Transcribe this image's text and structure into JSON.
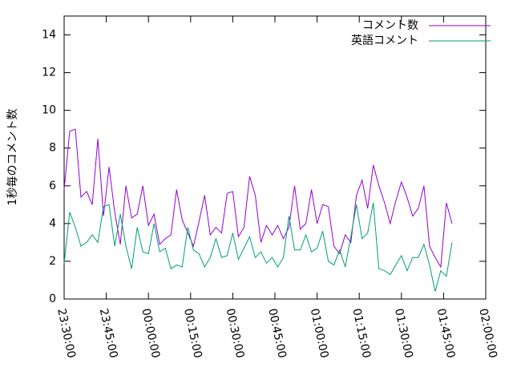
{
  "chart_data": {
    "type": "line",
    "ylabel": "1秒毎のコメント数",
    "x": [
      "23:30:00",
      "23:32:00",
      "23:34:00",
      "23:36:00",
      "23:38:00",
      "23:40:00",
      "23:42:00",
      "23:44:00",
      "23:46:00",
      "23:48:00",
      "23:50:00",
      "23:52:00",
      "23:54:00",
      "23:56:00",
      "23:58:00",
      "00:00:00",
      "00:02:00",
      "00:04:00",
      "00:06:00",
      "00:08:00",
      "00:10:00",
      "00:12:00",
      "00:14:00",
      "00:16:00",
      "00:18:00",
      "00:20:00",
      "00:22:00",
      "00:24:00",
      "00:26:00",
      "00:28:00",
      "00:30:00",
      "00:32:00",
      "00:34:00",
      "00:36:00",
      "00:38:00",
      "00:40:00",
      "00:42:00",
      "00:44:00",
      "00:46:00",
      "00:48:00",
      "00:50:00",
      "00:52:00",
      "00:54:00",
      "00:56:00",
      "00:58:00",
      "01:00:00",
      "01:02:00",
      "01:04:00",
      "01:06:00",
      "01:08:00",
      "01:10:00",
      "01:12:00",
      "01:14:00",
      "01:16:00",
      "01:18:00",
      "01:20:00",
      "01:22:00",
      "01:24:00",
      "01:26:00",
      "01:28:00",
      "01:30:00",
      "01:32:00",
      "01:34:00",
      "01:36:00",
      "01:38:00",
      "01:40:00",
      "01:42:00",
      "01:44:00",
      "01:46:00",
      "01:48:00"
    ],
    "series": [
      {
        "name": "コメント数",
        "color": "#9400d3",
        "values": [
          5.8,
          8.9,
          9.0,
          5.4,
          5.7,
          5.0,
          8.5,
          4.4,
          7.0,
          4.6,
          2.9,
          6.0,
          4.3,
          4.5,
          6.0,
          3.9,
          4.5,
          2.9,
          3.2,
          3.4,
          5.8,
          4.2,
          3.5,
          2.8,
          4.1,
          5.5,
          3.4,
          3.8,
          3.5,
          5.6,
          5.7,
          3.3,
          3.8,
          6.5,
          5.5,
          3.0,
          3.9,
          3.4,
          3.9,
          3.2,
          3.8,
          6.0,
          3.7,
          4.0,
          5.8,
          4.0,
          5.0,
          4.9,
          2.8,
          2.4,
          3.4,
          3.0,
          5.5,
          6.3,
          4.8,
          7.1,
          6.0,
          5.1,
          4.0,
          5.2,
          6.2,
          5.4,
          4.4,
          4.8,
          6.0,
          2.8,
          2.2,
          1.7,
          5.1,
          4.0
        ]
      },
      {
        "name": "英語コメント",
        "color": "#009e73",
        "values": [
          1.9,
          4.6,
          3.8,
          2.8,
          3.0,
          3.4,
          3.0,
          4.9,
          5.0,
          2.8,
          4.5,
          2.8,
          1.6,
          3.8,
          2.5,
          2.4,
          4.0,
          2.5,
          2.7,
          1.6,
          1.8,
          1.7,
          3.8,
          2.6,
          2.4,
          1.7,
          2.2,
          3.2,
          2.2,
          2.3,
          3.5,
          2.1,
          2.7,
          3.3,
          2.2,
          2.5,
          1.9,
          2.2,
          1.7,
          2.2,
          4.4,
          2.6,
          2.6,
          3.4,
          2.5,
          2.7,
          3.6,
          2.0,
          1.8,
          2.6,
          1.7,
          3.3,
          5.0,
          3.2,
          3.5,
          5.1,
          1.6,
          1.5,
          1.3,
          1.8,
          2.3,
          1.5,
          2.2,
          2.2,
          2.9,
          1.8,
          0.4,
          1.5,
          1.2,
          3.0
        ]
      }
    ],
    "xlim": [
      "23:30:00",
      "02:00:00"
    ],
    "xticks": [
      "23:30:00",
      "23:45:00",
      "00:00:00",
      "00:15:00",
      "00:30:00",
      "00:45:00",
      "01:00:00",
      "01:15:00",
      "01:30:00",
      "01:45:00",
      "02:00:00"
    ],
    "ylim": [
      0,
      15
    ],
    "yticks": [
      0,
      2,
      4,
      6,
      8,
      10,
      12,
      14
    ],
    "legend": "top-right"
  }
}
